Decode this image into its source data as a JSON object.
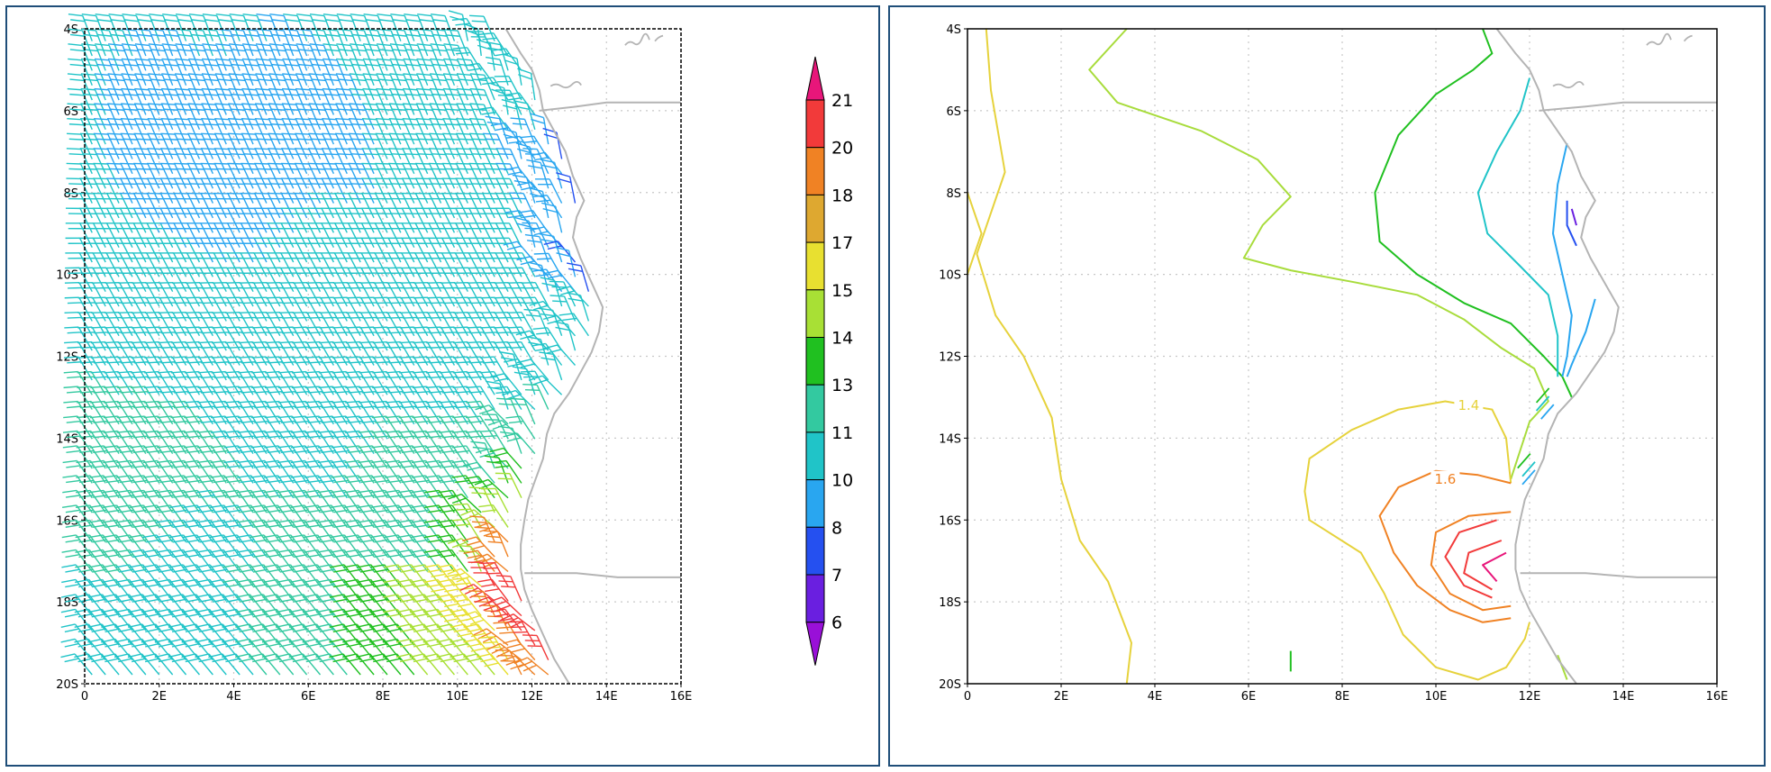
{
  "domain": "Map",
  "panels": [
    {
      "name": "wind-barbs",
      "xlim": [
        0,
        16
      ],
      "ylim": [
        -20,
        -4
      ],
      "xticks": [
        "0",
        "2E",
        "4E",
        "6E",
        "8E",
        "10E",
        "12E",
        "14E",
        "16E"
      ],
      "yticks": [
        "4S",
        "6S",
        "8S",
        "10S",
        "12S",
        "14S",
        "16S",
        "18S",
        "20S"
      ]
    },
    {
      "name": "contours",
      "xlim": [
        0,
        16
      ],
      "ylim": [
        -20,
        -4
      ],
      "xticks": [
        "0",
        "2E",
        "4E",
        "6E",
        "8E",
        "10E",
        "12E",
        "14E",
        "16E"
      ],
      "yticks": [
        "4S",
        "6S",
        "8S",
        "10S",
        "12S",
        "14S",
        "16S",
        "18S",
        "20S"
      ],
      "contour_labels": [
        "1.4",
        "1.6"
      ]
    }
  ],
  "colorbar": {
    "labels": [
      "21",
      "20",
      "18",
      "17",
      "15",
      "14",
      "13",
      "11",
      "10",
      "8",
      "7",
      "6"
    ],
    "colors": [
      "#e8167a",
      "#f23a3a",
      "#f08224",
      "#dea830",
      "#e8e030",
      "#a8e035",
      "#20c020",
      "#33c9a0",
      "#20c4c8",
      "#29a6f0",
      "#2550f0",
      "#6a1fe0",
      "#9910d8"
    ]
  },
  "chart_data": {
    "type": "map",
    "coastline_color": "#b4b4b4",
    "grid": "dotted",
    "coastline": [
      [
        11.3,
        -4.0
      ],
      [
        11.7,
        -4.6
      ],
      [
        12.0,
        -5.0
      ],
      [
        12.2,
        -5.5
      ],
      [
        12.3,
        -6.0
      ],
      [
        12.6,
        -6.5
      ],
      [
        12.9,
        -7.0
      ],
      [
        13.1,
        -7.6
      ],
      [
        13.4,
        -8.2
      ],
      [
        13.2,
        -8.6
      ],
      [
        13.1,
        -9.1
      ],
      [
        13.3,
        -9.6
      ],
      [
        13.6,
        -10.2
      ],
      [
        13.9,
        -10.8
      ],
      [
        13.8,
        -11.4
      ],
      [
        13.6,
        -11.9
      ],
      [
        13.3,
        -12.4
      ],
      [
        13.0,
        -12.9
      ],
      [
        12.6,
        -13.4
      ],
      [
        12.4,
        -13.9
      ],
      [
        12.3,
        -14.5
      ],
      [
        12.1,
        -15.0
      ],
      [
        11.9,
        -15.5
      ],
      [
        11.8,
        -16.0
      ],
      [
        11.7,
        -16.6
      ],
      [
        11.7,
        -17.2
      ],
      [
        11.8,
        -17.7
      ],
      [
        12.0,
        -18.2
      ],
      [
        12.3,
        -18.8
      ],
      [
        12.6,
        -19.4
      ],
      [
        13.0,
        -20.0
      ]
    ],
    "borders": [
      [
        [
          12.2,
          -6.0
        ],
        [
          13.2,
          -5.9
        ],
        [
          14.0,
          -5.8
        ],
        [
          16.0,
          -5.8
        ]
      ],
      [
        [
          11.8,
          -17.3
        ],
        [
          13.2,
          -17.3
        ],
        [
          14.3,
          -17.4
        ],
        [
          16.0,
          -17.4
        ]
      ]
    ],
    "contours": [
      {
        "color": "#e6d23c",
        "points": [
          [
            0.4,
            -4.0
          ],
          [
            0.5,
            -5.5
          ],
          [
            0.8,
            -7.5
          ],
          [
            0.2,
            -9.5
          ],
          [
            0.6,
            -11.0
          ],
          [
            1.2,
            -12.0
          ],
          [
            1.8,
            -13.5
          ],
          [
            2.0,
            -15.0
          ],
          [
            2.4,
            -16.5
          ],
          [
            3.0,
            -17.5
          ],
          [
            3.5,
            -19.0
          ],
          [
            3.4,
            -20.0
          ]
        ]
      },
      {
        "color": "#e6d23c",
        "points": [
          [
            0.0,
            -8.0
          ],
          [
            0.3,
            -9.0
          ],
          [
            0.0,
            -10.0
          ]
        ]
      },
      {
        "color": "#a8dc3c",
        "points": [
          [
            3.4,
            -4.0
          ],
          [
            2.6,
            -5.0
          ],
          [
            3.2,
            -5.8
          ],
          [
            5.0,
            -6.5
          ],
          [
            6.2,
            -7.2
          ],
          [
            6.9,
            -8.1
          ],
          [
            6.3,
            -8.8
          ],
          [
            5.9,
            -9.6
          ],
          [
            6.9,
            -9.9
          ],
          [
            8.3,
            -10.2
          ],
          [
            9.6,
            -10.5
          ],
          [
            10.6,
            -11.1
          ],
          [
            11.4,
            -11.8
          ],
          [
            12.1,
            -12.3
          ],
          [
            12.4,
            -13.1
          ],
          [
            12.0,
            -13.6
          ],
          [
            11.8,
            -14.3
          ],
          [
            11.6,
            -15.0
          ]
        ]
      },
      {
        "color": "#20c020",
        "points": [
          [
            11.0,
            -4.0
          ],
          [
            11.2,
            -4.6
          ],
          [
            10.8,
            -5.0
          ],
          [
            10.0,
            -5.6
          ],
          [
            9.2,
            -6.6
          ],
          [
            8.7,
            -8.0
          ],
          [
            8.8,
            -9.2
          ],
          [
            9.6,
            -10.0
          ],
          [
            10.6,
            -10.7
          ],
          [
            11.6,
            -11.2
          ],
          [
            12.3,
            -12.0
          ],
          [
            12.7,
            -12.5
          ],
          [
            12.9,
            -13.0
          ]
        ]
      },
      {
        "color": "#20c4c8",
        "points": [
          [
            12.0,
            -5.2
          ],
          [
            11.8,
            -6.0
          ],
          [
            11.3,
            -7.0
          ],
          [
            10.9,
            -8.0
          ],
          [
            11.1,
            -9.0
          ],
          [
            11.8,
            -9.8
          ],
          [
            12.4,
            -10.5
          ],
          [
            12.6,
            -11.5
          ],
          [
            12.6,
            -12.5
          ]
        ]
      },
      {
        "color": "#29a6f0",
        "points": [
          [
            12.8,
            -6.8
          ],
          [
            12.6,
            -7.8
          ],
          [
            12.5,
            -9.0
          ],
          [
            12.7,
            -10.0
          ],
          [
            12.9,
            -11.0
          ],
          [
            12.8,
            -12.0
          ],
          [
            12.7,
            -12.5
          ]
        ]
      },
      {
        "color": "#29a6f0",
        "points": [
          [
            13.4,
            -10.6
          ],
          [
            13.2,
            -11.4
          ],
          [
            12.9,
            -12.2
          ],
          [
            12.8,
            -12.5
          ]
        ]
      },
      {
        "color": "#2550f0",
        "points": [
          [
            12.8,
            -8.2
          ],
          [
            12.8,
            -8.8
          ],
          [
            13.0,
            -9.3
          ]
        ]
      },
      {
        "color": "#6a1fe0",
        "points": [
          [
            12.9,
            -8.4
          ],
          [
            13.0,
            -8.8
          ]
        ]
      },
      {
        "color": "#e6d23c",
        "points": [
          [
            11.6,
            -15.1
          ],
          [
            11.5,
            -14.0
          ],
          [
            11.2,
            -13.3
          ],
          [
            10.2,
            -13.1
          ],
          [
            9.2,
            -13.3
          ],
          [
            8.2,
            -13.8
          ],
          [
            7.3,
            -14.5
          ],
          [
            7.2,
            -15.3
          ],
          [
            7.3,
            -16.0
          ],
          [
            8.4,
            -16.8
          ],
          [
            8.9,
            -17.8
          ],
          [
            9.3,
            -18.8
          ],
          [
            10.0,
            -19.6
          ],
          [
            10.9,
            -19.9
          ],
          [
            11.5,
            -19.6
          ],
          [
            11.9,
            -18.9
          ],
          [
            12.0,
            -18.5
          ]
        ]
      },
      {
        "color": "#f08224",
        "points": [
          [
            11.6,
            -15.1
          ],
          [
            10.9,
            -14.9
          ],
          [
            10.0,
            -14.8
          ],
          [
            9.2,
            -15.2
          ],
          [
            8.8,
            -15.9
          ],
          [
            9.1,
            -16.8
          ],
          [
            9.6,
            -17.6
          ],
          [
            10.3,
            -18.2
          ],
          [
            11.0,
            -18.5
          ],
          [
            11.6,
            -18.4
          ]
        ]
      },
      {
        "color": "#f08224",
        "points": [
          [
            11.6,
            -15.8
          ],
          [
            10.7,
            -15.9
          ],
          [
            10.0,
            -16.3
          ],
          [
            9.9,
            -17.1
          ],
          [
            10.3,
            -17.8
          ],
          [
            11.0,
            -18.2
          ],
          [
            11.6,
            -18.1
          ]
        ]
      },
      {
        "color": "#f23a3a",
        "points": [
          [
            11.3,
            -16.0
          ],
          [
            10.5,
            -16.3
          ],
          [
            10.2,
            -16.9
          ],
          [
            10.6,
            -17.6
          ],
          [
            11.2,
            -17.9
          ]
        ]
      },
      {
        "color": "#f23a3a",
        "points": [
          [
            11.4,
            -16.5
          ],
          [
            10.7,
            -16.8
          ],
          [
            10.6,
            -17.3
          ],
          [
            11.2,
            -17.7
          ]
        ]
      },
      {
        "color": "#e8167a",
        "points": [
          [
            11.5,
            -16.8
          ],
          [
            11.0,
            -17.1
          ],
          [
            11.3,
            -17.5
          ]
        ]
      },
      {
        "color": "#20c020",
        "points": [
          [
            6.9,
            -19.2
          ],
          [
            6.9,
            -19.7
          ]
        ]
      },
      {
        "color": "#a8dc3c",
        "points": [
          [
            12.6,
            -19.3
          ],
          [
            12.8,
            -19.9
          ]
        ]
      }
    ]
  }
}
